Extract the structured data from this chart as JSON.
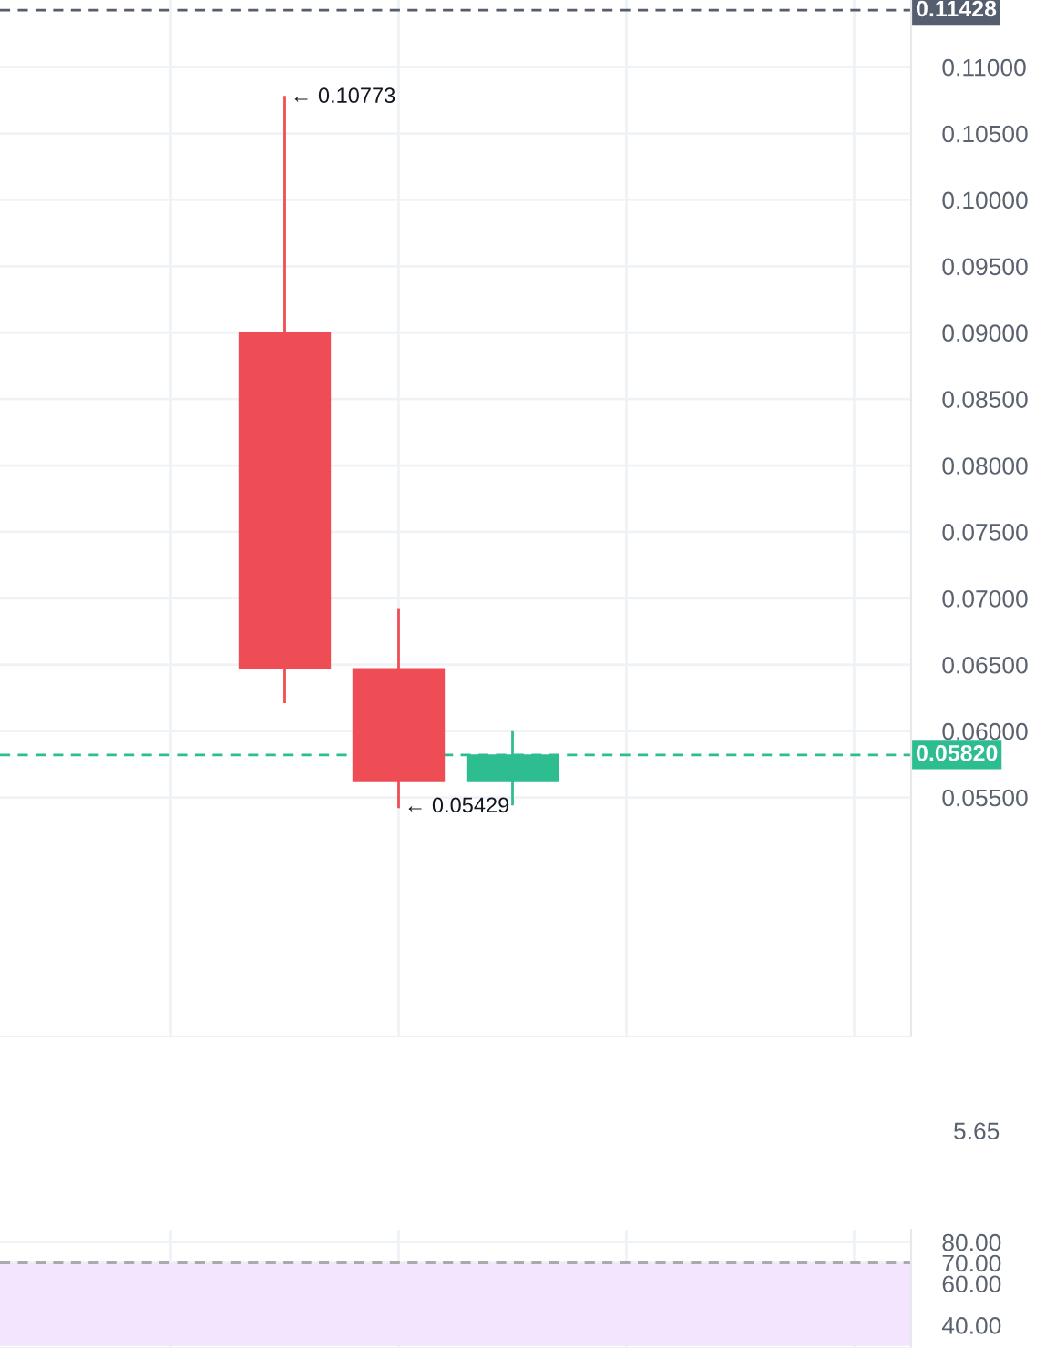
{
  "chart_data": [
    {
      "type": "candlestick",
      "categories": [
        null,
        null,
        null,
        null,
        null,
        null,
        null,
        null
      ],
      "ohlc": [
        null,
        null,
        [
          0.09,
          0.10773,
          0.0622,
          0.0647
        ],
        [
          0.0647,
          0.0691,
          0.05429,
          0.0562
        ],
        [
          0.0562,
          0.0599,
          0.0545,
          0.0582
        ],
        null,
        null,
        null
      ],
      "colors": [
        null,
        null,
        "#ef4d56",
        "#ef4d56",
        "#2ebd91",
        null,
        null,
        null
      ],
      "ylim": [
        0.037,
        0.11505
      ],
      "yticks": [
        {
          "value": 0.055,
          "label": "0.05500"
        },
        {
          "value": 0.06,
          "label": "0.06000"
        },
        {
          "value": 0.065,
          "label": "0.06500"
        },
        {
          "value": 0.07,
          "label": "0.07000"
        },
        {
          "value": 0.075,
          "label": "0.07500"
        },
        {
          "value": 0.08,
          "label": "0.08000"
        },
        {
          "value": 0.085,
          "label": "0.08500"
        },
        {
          "value": 0.09,
          "label": "0.09000"
        },
        {
          "value": 0.095,
          "label": "0.09500"
        },
        {
          "value": 0.1,
          "label": "0.10000"
        },
        {
          "value": 0.105,
          "label": "0.10500"
        },
        {
          "value": 0.11,
          "label": "0.11000"
        }
      ],
      "ref_lines": [
        {
          "axis": "y",
          "value": 0.11428,
          "label": "0.11428",
          "color": "#555e6e",
          "line_style": "dashed"
        },
        {
          "axis": "y",
          "value": 0.0582,
          "label": "0.05820",
          "color": "#2ebd91",
          "line_style": "dashed"
        }
      ],
      "annotations": [
        "← 0.10773",
        "← 0.05429"
      ],
      "grid": true,
      "tick_labels": "y"
    },
    {
      "type": "other",
      "annotations": [
        "5.65"
      ]
    },
    {
      "type": "line",
      "categories": [
        null,
        null,
        null,
        null,
        null,
        null,
        null,
        null
      ],
      "ylim": [
        29,
        86
      ],
      "yticks": [
        {
          "value": 40,
          "label": "40.00"
        },
        {
          "value": 60,
          "label": "60.00"
        },
        {
          "value": 70,
          "label": "70.00"
        },
        {
          "value": 80,
          "label": "80.00"
        }
      ],
      "bands": [
        {
          "axis": "y",
          "from": 30,
          "to": 70,
          "color": "#f3e5fd"
        }
      ],
      "ref_lines": [
        {
          "axis": "y",
          "value": 70,
          "color": "#aaaaaa",
          "line_style": "dashed"
        }
      ],
      "grid": true,
      "tick_labels": "y"
    }
  ]
}
